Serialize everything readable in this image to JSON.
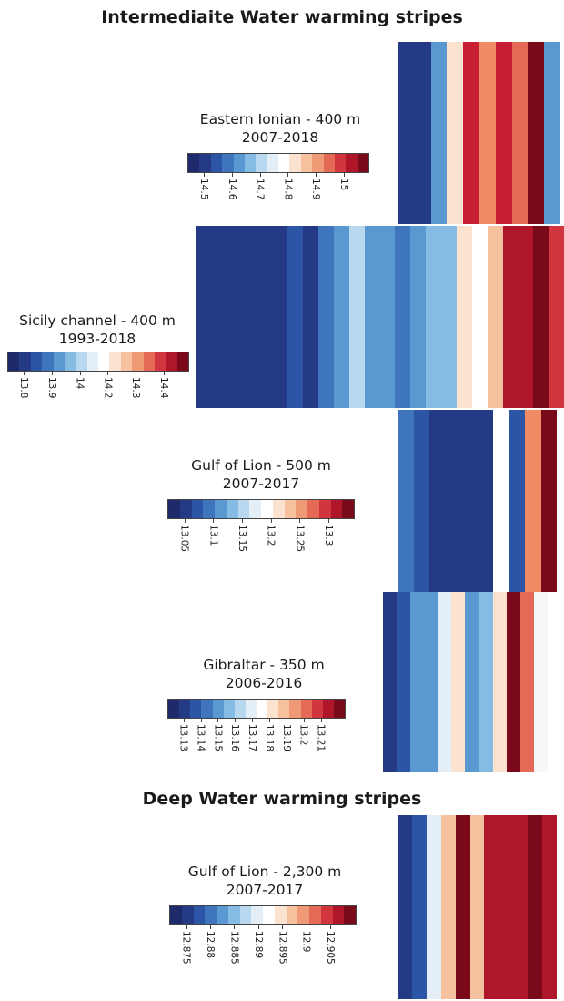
{
  "sections": {
    "intermediate_title": "Intermediaite Water warming stripes",
    "deep_title": "Deep Water warming stripes"
  },
  "panels": {
    "eastern_ionian": {
      "title": "Eastern Ionian - 400 m",
      "years": "2007-2018"
    },
    "sicily": {
      "title": "Sicily channel - 400 m",
      "years": "1993-2018"
    },
    "gulf_lion_500": {
      "title": "Gulf of Lion - 500 m",
      "years": "2007-2017"
    },
    "gibraltar": {
      "title": "Gibraltar - 350 m",
      "years": "2006-2016"
    },
    "gulf_lion_2300": {
      "title": "Gulf of Lion - 2,300 m",
      "years": "2007-2017"
    }
  },
  "palette": [
    "#1f2a6b",
    "#253a84",
    "#2c55a8",
    "#3f75bd",
    "#5a98d2",
    "#85bce3",
    "#b8d8ef",
    "#e4eef7",
    "#ffffff",
    "#fbe3cf",
    "#f6c19e",
    "#ef9a74",
    "#e46a55",
    "#d1353d",
    "#b01629",
    "#7a0a1a"
  ],
  "chart_data": [
    {
      "type": "heatmap",
      "title": "Eastern Ionian - 400 m",
      "subtitle": "2007-2018",
      "color_scale_ticks": [
        14.5,
        14.6,
        14.7,
        14.8,
        14.9,
        15
      ],
      "stripe_colors": [
        "#253a84",
        "#253a84",
        "#5a98d2",
        "#fbe3cf",
        "#c81e33",
        "#ef8a62",
        "#c81e33",
        "#e46a55",
        "#7a0a1a",
        "#5a98d2"
      ]
    },
    {
      "type": "heatmap",
      "title": "Sicily channel - 400 m",
      "subtitle": "1993-2018",
      "color_scale_ticks": [
        13.8,
        13.9,
        14,
        14.2,
        14.3,
        14.4
      ],
      "stripe_colors": [
        "#253a84",
        "#253a84",
        "#253a84",
        "#253a84",
        "#253a84",
        "#253a84",
        "#2c55a8",
        "#253a84",
        "#3f75bd",
        "#5a98d2",
        "#b8d8ef",
        "#5a98d2",
        "#5a98d2",
        "#3f75bd",
        "#5a98d2",
        "#85bce3",
        "#85bce3",
        "#fbe3cf",
        "#ffffff",
        "#f6c19e",
        "#b01629",
        "#b01629",
        "#7a0a1a",
        "#d1353d"
      ]
    },
    {
      "type": "heatmap",
      "title": "Gulf of Lion - 500 m",
      "subtitle": "2007-2017",
      "color_scale_ticks": [
        13.05,
        13.1,
        13.15,
        13.2,
        13.25,
        13.3
      ],
      "stripe_colors": [
        "#3f75bd",
        "#2c55a8",
        "#253a84",
        "#253a84",
        "#253a84",
        "#253a84",
        "#ffffff",
        "#2c55a8",
        "#ef8a62",
        "#7a0a1a"
      ]
    },
    {
      "type": "heatmap",
      "title": "Gibraltar - 350 m",
      "subtitle": "2006-2016",
      "color_scale_ticks": [
        13.13,
        13.14,
        13.15,
        13.16,
        13.17,
        13.18,
        13.19,
        13.2,
        13.21
      ],
      "stripe_colors": [
        "#253a84",
        "#2c55a8",
        "#5a98d2",
        "#5a98d2",
        "#e4eef7",
        "#fbe3cf",
        "#5a98d2",
        "#85bce3",
        "#fbe3cf",
        "#7a0a1a",
        "#e46a55",
        "#f7f7f7"
      ]
    },
    {
      "type": "heatmap",
      "title": "Gulf of Lion - 2,300 m",
      "subtitle": "2007-2017",
      "color_scale_ticks": [
        12.875,
        12.88,
        12.885,
        12.89,
        12.895,
        12.9,
        12.905
      ],
      "stripe_colors": [
        "#253a84",
        "#2c55a8",
        "#e4eef7",
        "#f6c19e",
        "#7a0a1a",
        "#f6c19e",
        "#b01629",
        "#b01629",
        "#b01629",
        "#7a0a1a",
        "#b01629"
      ]
    }
  ]
}
